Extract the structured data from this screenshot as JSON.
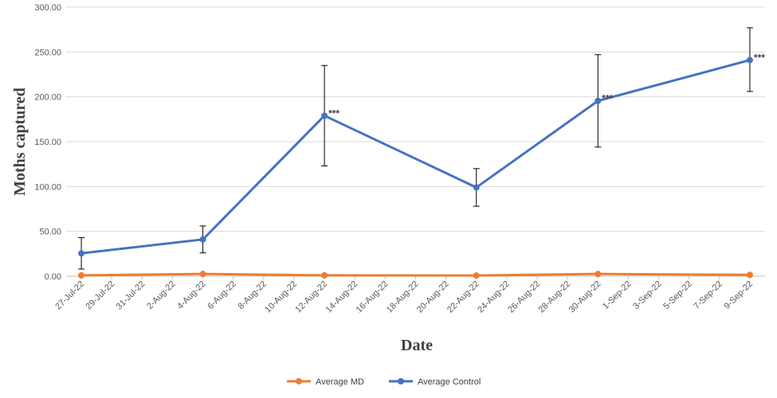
{
  "chart_data": {
    "type": "line",
    "title": "",
    "xlabel": "Date",
    "ylabel": "Moths captured",
    "ylim": [
      0,
      300
    ],
    "yticks": [
      "0.00",
      "50.00",
      "100.00",
      "150.00",
      "200.00",
      "250.00",
      "300.00"
    ],
    "x_tick_labels": [
      "27-Jul-22",
      "29-Jul-22",
      "31-Jul-22",
      "2-Aug-22",
      "4-Aug-22",
      "6-Aug-22",
      "8-Aug-22",
      "10-Aug-22",
      "12-Aug-22",
      "14-Aug-22",
      "16-Aug-22",
      "18-Aug-22",
      "20-Aug-22",
      "22-Aug-22",
      "24-Aug-22",
      "26-Aug-22",
      "28-Aug-22",
      "30-Aug-22",
      "1-Sep-22",
      "3-Sep-22",
      "5-Sep-22",
      "7-Sep-22",
      "9-Sep-22"
    ],
    "x_range": [
      "2022-07-26",
      "2022-09-10"
    ],
    "grid": "horizontal",
    "legend_position": "bottom",
    "series": [
      {
        "name": "Average MD",
        "color": "#ED7D31",
        "x": [
          "2022-07-27",
          "2022-08-04",
          "2022-08-12",
          "2022-08-22",
          "2022-08-30",
          "2022-09-09"
        ],
        "values": [
          1.0,
          2.5,
          1.0,
          0.8,
          2.5,
          1.5
        ]
      },
      {
        "name": "Average Control",
        "color": "#4472C4",
        "x": [
          "2022-07-27",
          "2022-08-04",
          "2022-08-12",
          "2022-08-22",
          "2022-08-30",
          "2022-09-09"
        ],
        "values": [
          25.5,
          41.0,
          179.0,
          99.0,
          195.5,
          241.0
        ],
        "error_upper": [
          43.0,
          56.0,
          235.0,
          120.0,
          247.0,
          277.0
        ],
        "error_lower": [
          8.0,
          26.0,
          123.0,
          78.0,
          144.0,
          206.0
        ]
      }
    ],
    "annotations": [
      {
        "text": "***",
        "x": "2022-08-12",
        "y": 179.0
      },
      {
        "text": "***",
        "x": "2022-08-30",
        "y": 195.5
      },
      {
        "text": "***",
        "x": "2022-09-09",
        "y": 241.0
      }
    ]
  }
}
